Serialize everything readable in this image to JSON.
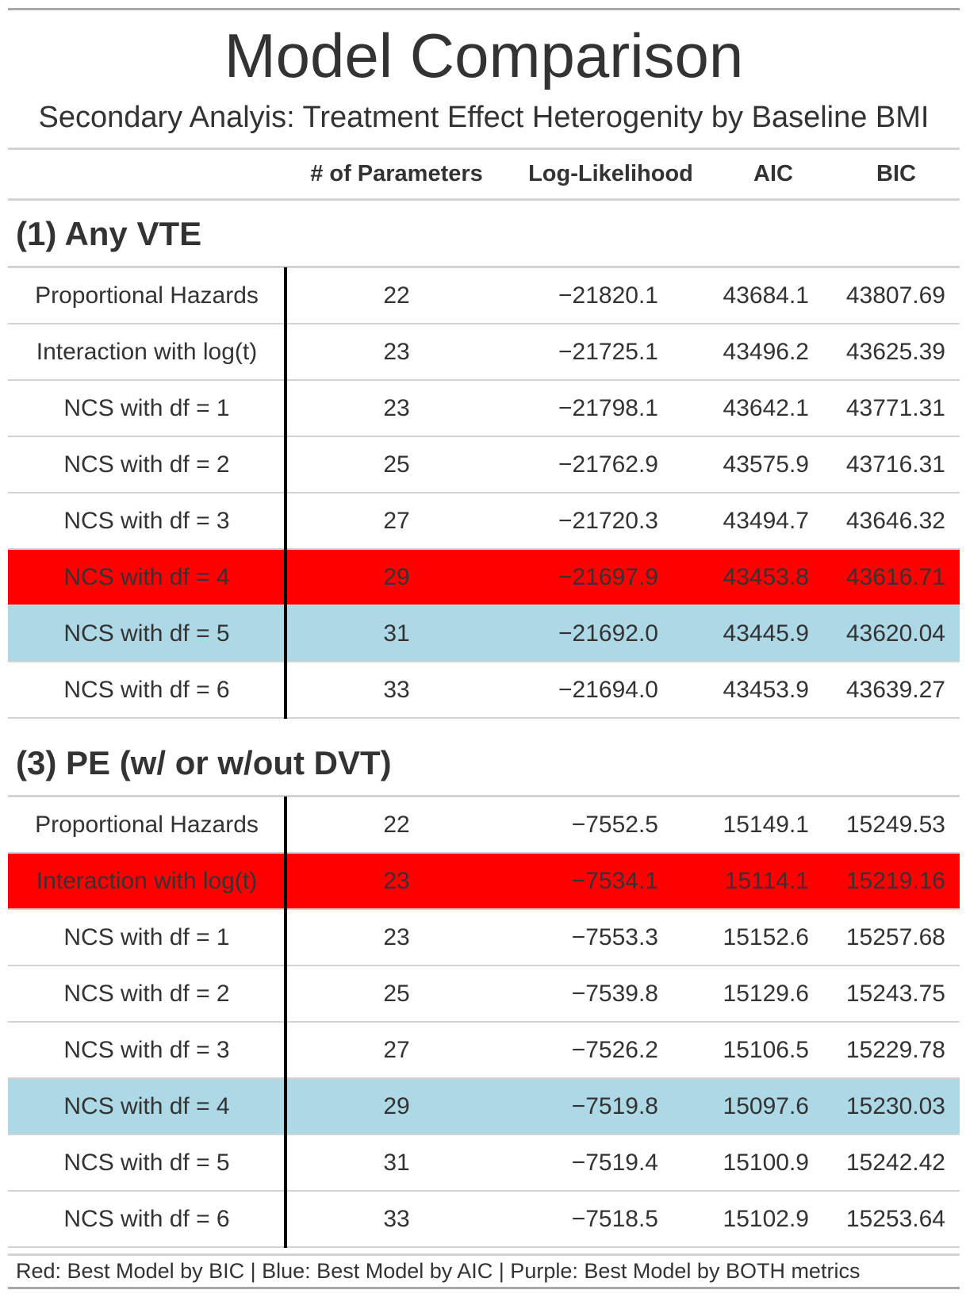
{
  "title": "Model Comparison",
  "subtitle": "Secondary Analyis: Treatment Effect Heterogenity by Baseline BMI",
  "columns": [
    "",
    "# of Parameters",
    "Log-Likelihood",
    "AIC",
    "BIC"
  ],
  "colors": {
    "best_bic": "#ff0000",
    "best_aic": "#add8e6",
    "rule": "#d3d3d3",
    "divider": "#000000",
    "text": "#333333"
  },
  "groups": [
    {
      "label": "(1) Any VTE",
      "rows": [
        {
          "model": "Proportional Hazards",
          "params": "22",
          "loglik": "−21820.1",
          "aic": "43684.1",
          "bic": "43807.69",
          "highlight": ""
        },
        {
          "model": "Interaction with log(t)",
          "params": "23",
          "loglik": "−21725.1",
          "aic": "43496.2",
          "bic": "43625.39",
          "highlight": ""
        },
        {
          "model": "NCS with df = 1",
          "params": "23",
          "loglik": "−21798.1",
          "aic": "43642.1",
          "bic": "43771.31",
          "highlight": ""
        },
        {
          "model": "NCS with df = 2",
          "params": "25",
          "loglik": "−21762.9",
          "aic": "43575.9",
          "bic": "43716.31",
          "highlight": ""
        },
        {
          "model": "NCS with df = 3",
          "params": "27",
          "loglik": "−21720.3",
          "aic": "43494.7",
          "bic": "43646.32",
          "highlight": ""
        },
        {
          "model": "NCS with df = 4",
          "params": "29",
          "loglik": "−21697.9",
          "aic": "43453.8",
          "bic": "43616.71",
          "highlight": "red"
        },
        {
          "model": "NCS with df = 5",
          "params": "31",
          "loglik": "−21692.0",
          "aic": "43445.9",
          "bic": "43620.04",
          "highlight": "blue"
        },
        {
          "model": "NCS with df = 6",
          "params": "33",
          "loglik": "−21694.0",
          "aic": "43453.9",
          "bic": "43639.27",
          "highlight": ""
        }
      ]
    },
    {
      "label": "(3) PE (w/ or w/out DVT)",
      "rows": [
        {
          "model": "Proportional Hazards",
          "params": "22",
          "loglik": "−7552.5",
          "aic": "15149.1",
          "bic": "15249.53",
          "highlight": ""
        },
        {
          "model": "Interaction with log(t)",
          "params": "23",
          "loglik": "−7534.1",
          "aic": "15114.1",
          "bic": "15219.16",
          "highlight": "red"
        },
        {
          "model": "NCS with df = 1",
          "params": "23",
          "loglik": "−7553.3",
          "aic": "15152.6",
          "bic": "15257.68",
          "highlight": ""
        },
        {
          "model": "NCS with df = 2",
          "params": "25",
          "loglik": "−7539.8",
          "aic": "15129.6",
          "bic": "15243.75",
          "highlight": ""
        },
        {
          "model": "NCS with df = 3",
          "params": "27",
          "loglik": "−7526.2",
          "aic": "15106.5",
          "bic": "15229.78",
          "highlight": ""
        },
        {
          "model": "NCS with df = 4",
          "params": "29",
          "loglik": "−7519.8",
          "aic": "15097.6",
          "bic": "15230.03",
          "highlight": "blue"
        },
        {
          "model": "NCS with df = 5",
          "params": "31",
          "loglik": "−7519.4",
          "aic": "15100.9",
          "bic": "15242.42",
          "highlight": ""
        },
        {
          "model": "NCS with df = 6",
          "params": "33",
          "loglik": "−7518.5",
          "aic": "15102.9",
          "bic": "15253.64",
          "highlight": ""
        }
      ]
    }
  ],
  "footer": "Red: Best Model by BIC | Blue: Best Model by AIC | Purple: Best Model by BOTH metrics"
}
